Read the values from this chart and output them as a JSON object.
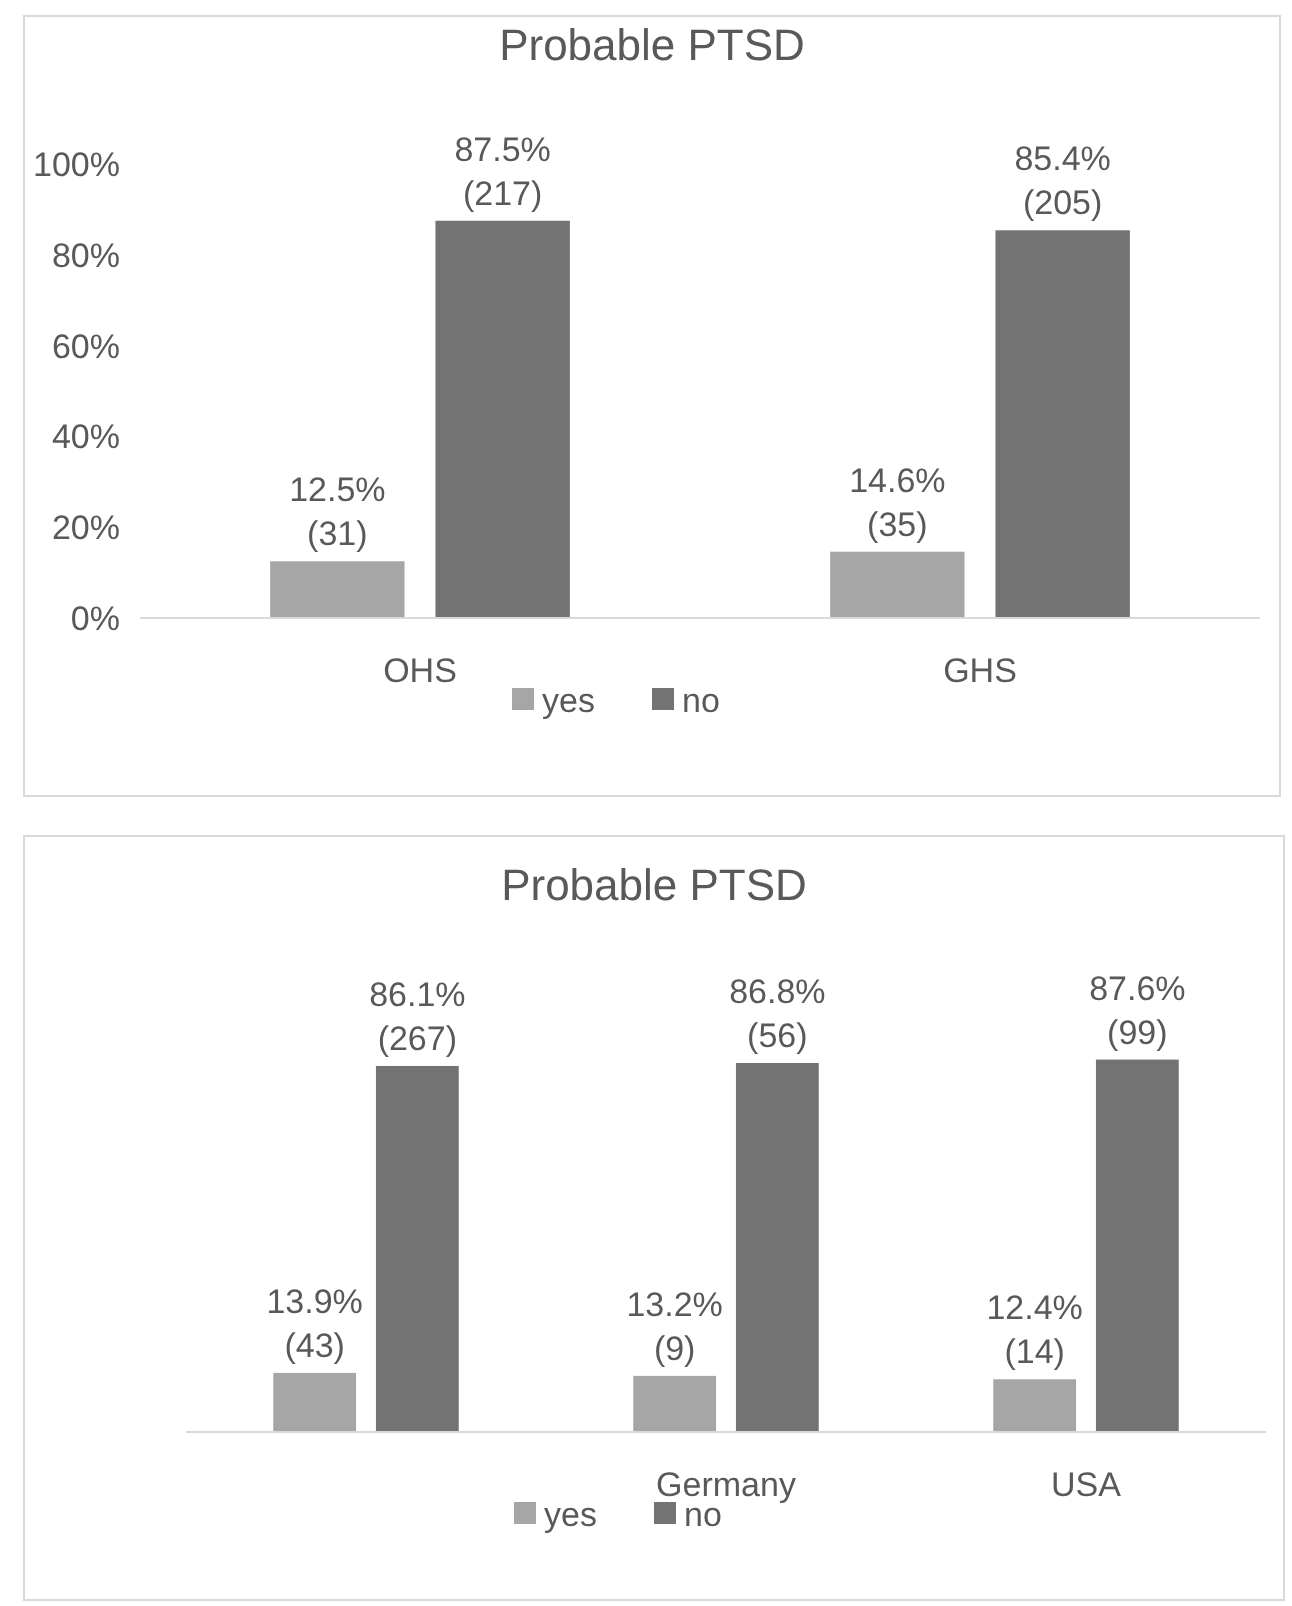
{
  "chart_data": [
    {
      "type": "bar",
      "title": "Probable PTSD",
      "categories": [
        "OHS",
        "GHS"
      ],
      "series": [
        {
          "name": "yes",
          "color": "#a6a6a6",
          "values": [
            12.5,
            14.6
          ],
          "value_labels": [
            "12.5%\n(31)",
            "14.6%\n(35)"
          ]
        },
        {
          "name": "no",
          "color": "#737373",
          "values": [
            87.5,
            85.4
          ],
          "value_labels": [
            "87.5%\n(217)",
            "85.4%\n(205)"
          ]
        }
      ],
      "ylim": [
        0,
        100
      ],
      "yticks": [
        {
          "value": 0,
          "label": "0%"
        },
        {
          "value": 20,
          "label": "20%"
        },
        {
          "value": 40,
          "label": "40%"
        },
        {
          "value": 60,
          "label": "60%"
        },
        {
          "value": 80,
          "label": "80%"
        },
        {
          "value": 100,
          "label": "100%"
        }
      ],
      "grid": false,
      "legend": "bottom"
    },
    {
      "type": "bar",
      "title": "Probable PTSD",
      "categories": [
        null,
        "Germany",
        "USA"
      ],
      "series": [
        {
          "name": "yes",
          "color": "#a6a6a6",
          "values": [
            13.9,
            13.2,
            12.4
          ],
          "value_labels": [
            "13.9%\n(43)",
            "13.2%\n(9)",
            "12.4%\n(14)"
          ]
        },
        {
          "name": "no",
          "color": "#737373",
          "values": [
            86.1,
            86.8,
            87.6
          ],
          "value_labels": [
            "86.1%\n(267)",
            "86.8%\n(56)",
            "87.6%\n(99)"
          ]
        }
      ],
      "grid": false,
      "legend": "bottom"
    }
  ]
}
